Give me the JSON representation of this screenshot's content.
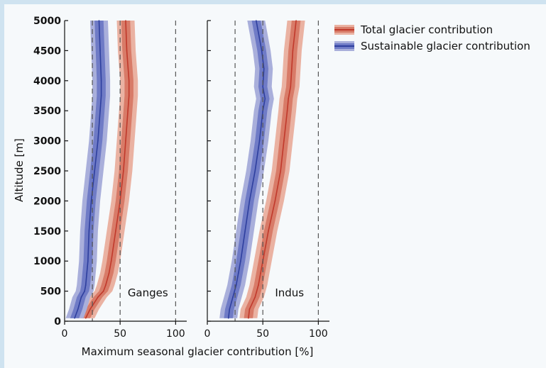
{
  "chart_data": {
    "type": "line",
    "xlabel": "Maximum seasonal glacier contribution [%]",
    "ylabel": "Altitude [m]",
    "xlim": [
      0,
      110
    ],
    "ylim": [
      0,
      5000
    ],
    "x_ticks": [
      0,
      50,
      100
    ],
    "y_ticks": [
      0,
      500,
      1000,
      1500,
      2000,
      2500,
      3000,
      3500,
      4000,
      4500,
      5000
    ],
    "reference_lines_x": [
      25,
      50,
      100
    ],
    "colors": {
      "total": "#c0392b",
      "total_band_outer": "#eab2a2",
      "total_band_inner": "#d87b68",
      "sustainable": "#2e3f9e",
      "sustainable_band_outer": "#a9afdb",
      "sustainable_band_inner": "#6f7bc6"
    },
    "legend": [
      {
        "label": "Total glacier contribution",
        "key": "total"
      },
      {
        "label": "Sustainable glacier contribution",
        "key": "sustainable"
      }
    ],
    "panels": [
      {
        "name": "Ganges",
        "altitude": [
          50,
          200,
          400,
          500,
          600,
          800,
          1000,
          1500,
          2000,
          2500,
          3000,
          3500,
          3750,
          4000,
          4500,
          5000
        ],
        "series": [
          {
            "key": "total",
            "values": [
              19,
              23,
              30,
              35,
              37,
              40,
              42,
              46,
              50,
              53,
              55,
              57,
              58,
              58,
              56,
              55
            ],
            "inner": [
              4,
              4,
              4,
              4,
              4,
              4,
              4,
              4,
              4,
              4,
              4,
              4,
              4,
              4,
              4,
              4
            ],
            "outer": [
              8,
              8,
              8,
              8,
              8,
              8,
              8,
              8,
              8,
              8,
              8,
              8,
              8,
              8,
              8,
              8
            ]
          },
          {
            "key": "sustainable",
            "values": [
              9,
              12,
              15,
              18,
              19,
              20,
              21,
              22,
              24,
              27,
              30,
              32,
              33,
              33,
              32,
              31
            ],
            "inner": [
              4,
              4,
              4,
              4,
              4,
              4,
              4,
              4,
              4,
              4,
              4,
              4,
              4,
              4,
              4,
              4
            ],
            "outer": [
              8,
              8,
              8,
              8,
              8,
              8,
              8,
              8,
              8,
              8,
              8,
              8,
              8,
              8,
              8,
              8
            ]
          }
        ]
      },
      {
        "name": "Indus",
        "altitude": [
          50,
          200,
          400,
          600,
          800,
          1000,
          1500,
          2000,
          2500,
          3000,
          3500,
          3700,
          3900,
          4200,
          4500,
          5000
        ],
        "series": [
          {
            "key": "total",
            "values": [
              37,
              38,
              43,
              46,
              48,
              50,
              55,
              61,
              66,
              69,
              72,
              73,
              75,
              76,
              77,
              80
            ],
            "inner": [
              4,
              4,
              4,
              4,
              4,
              4,
              4,
              4,
              4,
              4,
              4,
              4,
              4,
              4,
              4,
              4
            ],
            "outer": [
              8,
              8,
              8,
              8,
              8,
              8,
              8,
              8,
              8,
              8,
              8,
              8,
              8,
              8,
              8,
              8
            ]
          },
          {
            "key": "sustainable",
            "values": [
              19,
              20,
              23,
              26,
              28,
              30,
              34,
              38,
              43,
              47,
              50,
              52,
              50,
              51,
              49,
              44
            ],
            "inner": [
              4,
              4,
              4,
              4,
              4,
              4,
              4,
              4,
              4,
              4,
              4,
              4,
              4,
              4,
              4,
              4
            ],
            "outer": [
              8,
              8,
              8,
              8,
              8,
              8,
              8,
              8,
              8,
              8,
              8,
              8,
              8,
              8,
              8,
              8
            ]
          }
        ]
      }
    ]
  }
}
